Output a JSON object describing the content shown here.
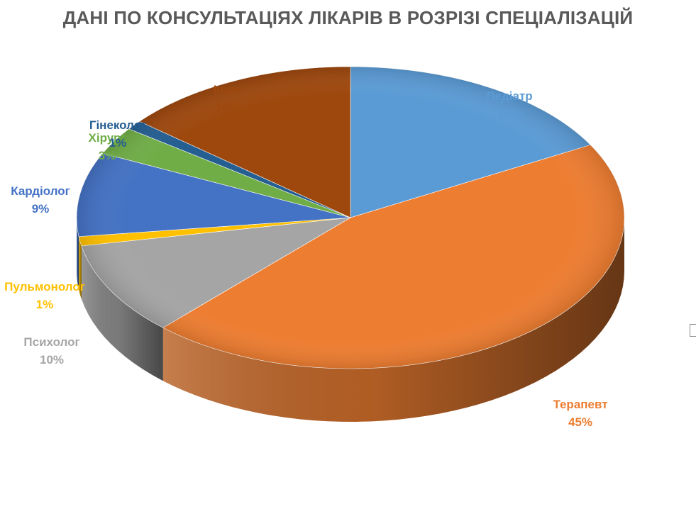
{
  "chart_data": {
    "type": "pie",
    "title": "ДАНІ ПО КОНСУЛЬТАЦІЯХ ЛІКАРІВ В РОЗРІЗІ СПЕЦІАЛІЗАЦІЙ",
    "style": "3d",
    "legend": "none",
    "slices": [
      {
        "label": "Педіатр",
        "value": 17,
        "display": "17%",
        "color": "#5b9bd5"
      },
      {
        "label": "Терапевт",
        "value": 45,
        "display": "45%",
        "color": "#ed7d31"
      },
      {
        "label": "Психолог",
        "value": 10,
        "display": "10%",
        "color": "#a5a5a5"
      },
      {
        "label": "Пульмонолог",
        "value": 1,
        "display": "1%",
        "color": "#ffc000"
      },
      {
        "label": "Кардіолог",
        "value": 9,
        "display": "9%",
        "color": "#4472c4"
      },
      {
        "label": "Хірург",
        "value": 3,
        "display": "3%",
        "color": "#70ad47"
      },
      {
        "label": "Гінеколог",
        "value": 1,
        "display": "1%",
        "color": "#255e91"
      },
      {
        "label": "Інше",
        "value": 14,
        "display": "14%",
        "color": "#9e480e"
      }
    ]
  }
}
